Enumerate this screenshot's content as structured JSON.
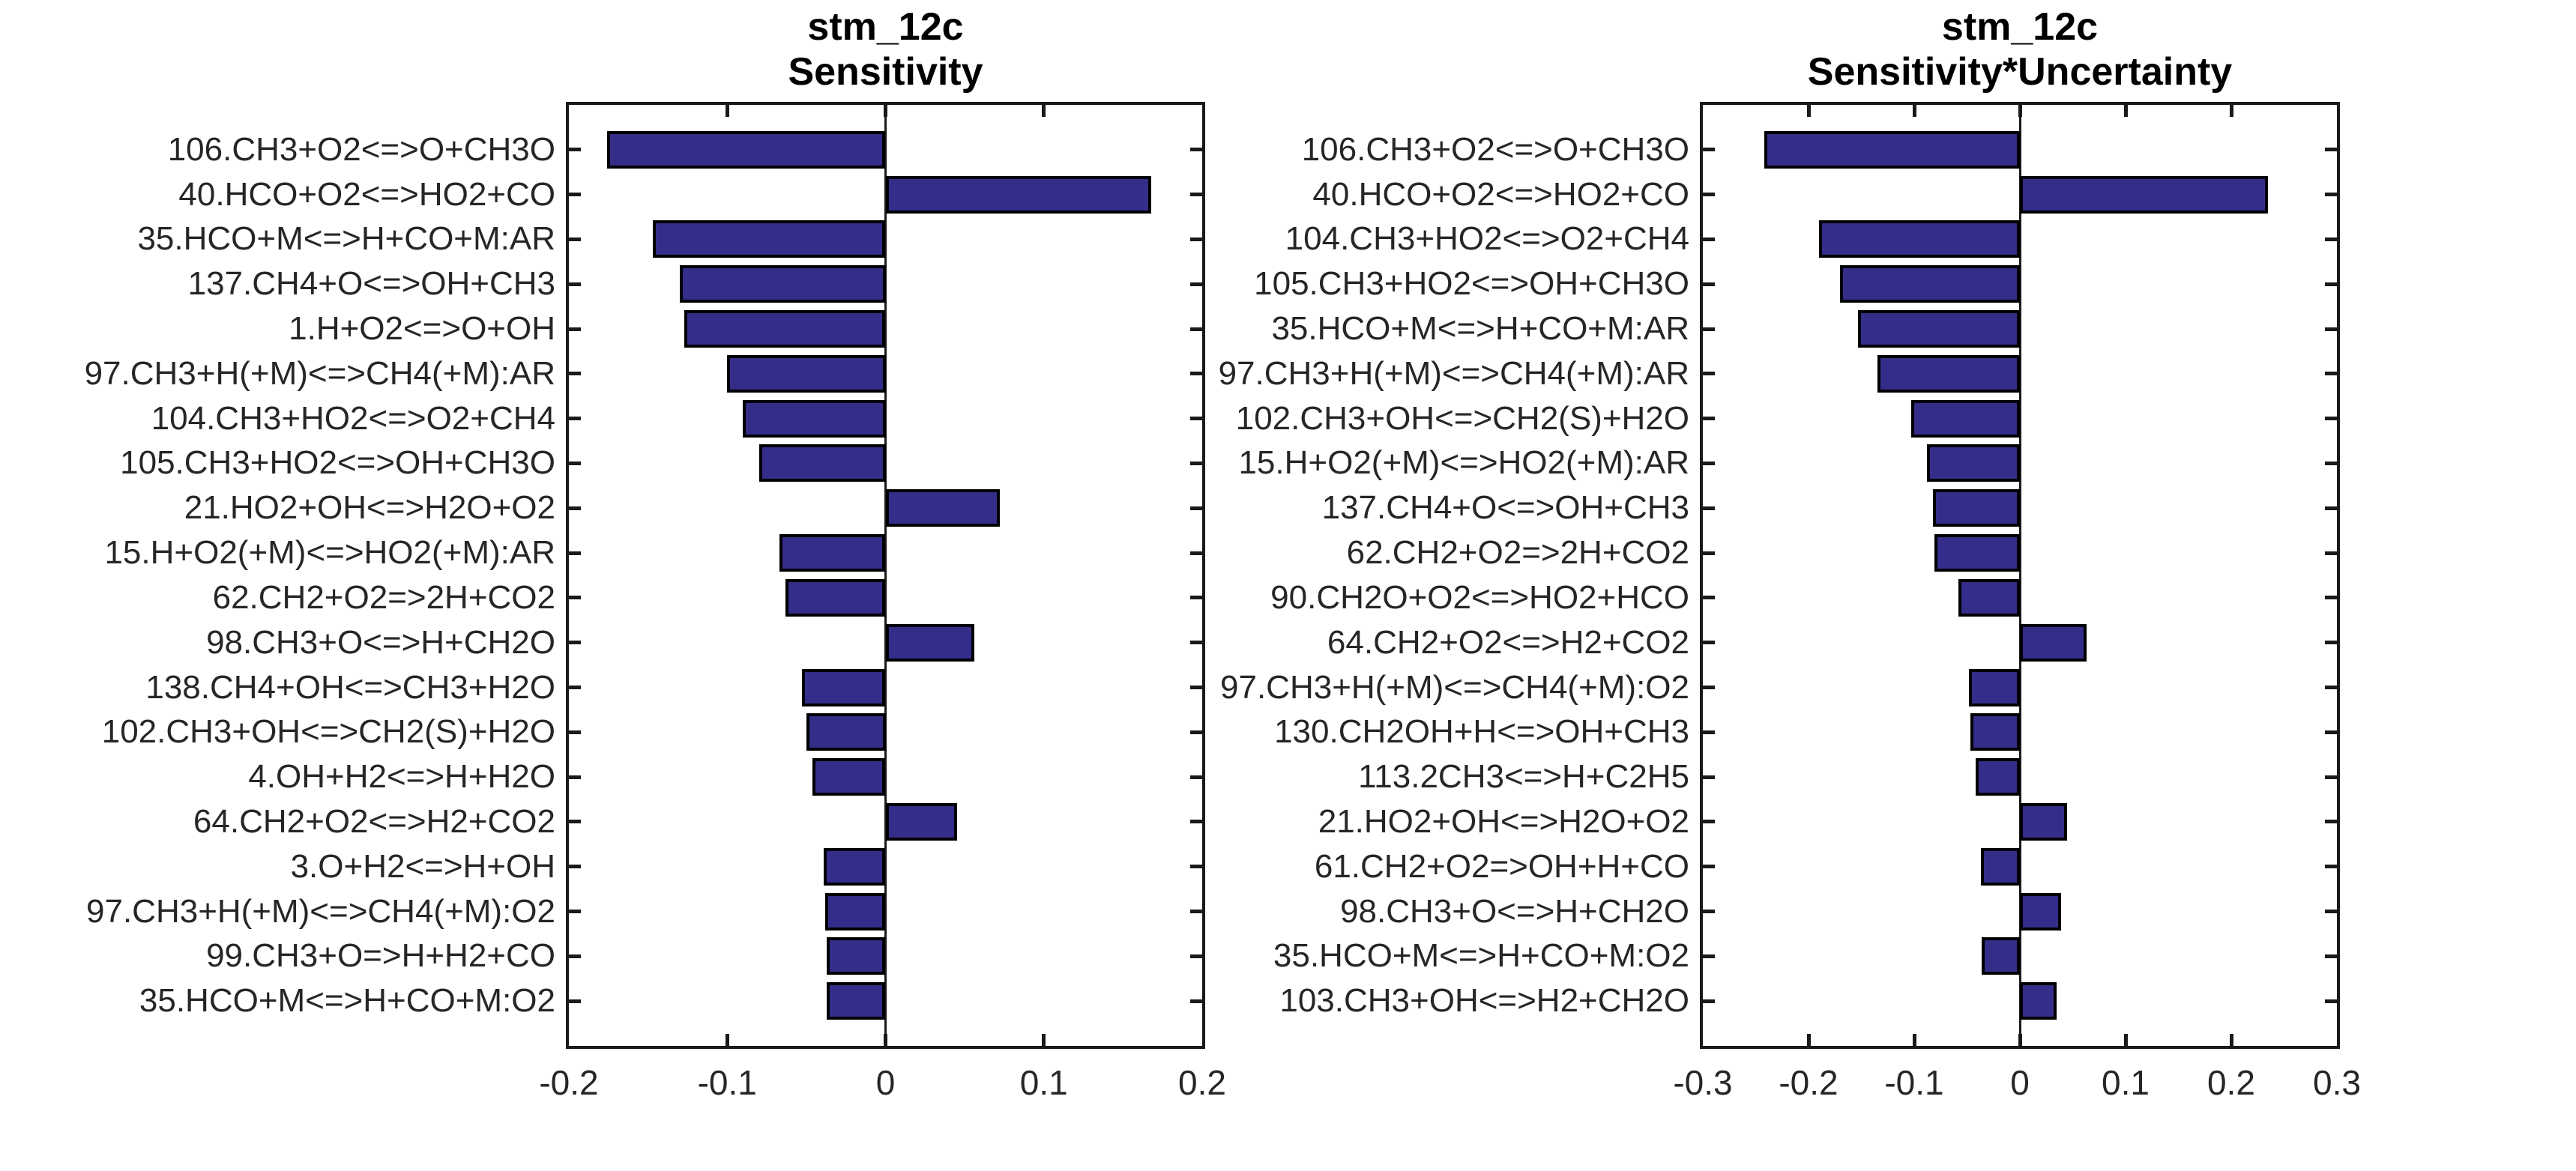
{
  "figure": {
    "background": "#ffffff",
    "axes_color": "#1a1a1a",
    "label_color": "#262626"
  },
  "chart_data": [
    {
      "type": "bar",
      "orientation": "horizontal",
      "title_line1": "stm_12c",
      "title_line2": "Sensitivity",
      "xlabel": "",
      "ylabel": "",
      "grid": false,
      "legend": null,
      "bar_color": "#342d8a",
      "bar_edge_color": "#000000",
      "xlim": [
        -0.2,
        0.2
      ],
      "xticks": [
        -0.2,
        -0.1,
        0,
        0.1,
        0.2
      ],
      "xtick_labels": [
        "-0.2",
        "-0.1",
        "0",
        "0.1",
        "0.2"
      ],
      "categories": [
        "106.CH3+O2<=>O+CH3O",
        "40.HCO+O2<=>HO2+CO",
        "35.HCO+M<=>H+CO+M:AR",
        "137.CH4+O<=>OH+CH3",
        "1.H+O2<=>O+OH",
        "97.CH3+H(+M)<=>CH4(+M):AR",
        "104.CH3+HO2<=>O2+CH4",
        "105.CH3+HO2<=>OH+CH3O",
        "21.HO2+OH<=>H2O+O2",
        "15.H+O2(+M)<=>HO2(+M):AR",
        "62.CH2+O2=>2H+CO2",
        "98.CH3+O<=>H+CH2O",
        "138.CH4+OH<=>CH3+H2O",
        "102.CH3+OH<=>CH2(S)+H2O",
        "4.OH+H2<=>H+H2O",
        "64.CH2+O2<=>H2+CO2",
        "3.O+H2<=>H+OH",
        "97.CH3+H(+M)<=>CH4(+M):O2",
        "99.CH3+O=>H+H2+CO",
        "35.HCO+M<=>H+CO+M:O2"
      ],
      "values": [
        -0.176,
        0.168,
        -0.147,
        -0.13,
        -0.127,
        -0.1,
        -0.09,
        -0.08,
        0.072,
        -0.067,
        -0.063,
        0.056,
        -0.053,
        -0.05,
        -0.046,
        0.045,
        -0.039,
        -0.038,
        -0.037,
        -0.037
      ]
    },
    {
      "type": "bar",
      "orientation": "horizontal",
      "title_line1": "stm_12c",
      "title_line2": "Sensitivity*Uncertainty",
      "xlabel": "",
      "ylabel": "",
      "grid": false,
      "legend": null,
      "bar_color": "#342d8a",
      "bar_edge_color": "#000000",
      "xlim": [
        -0.3,
        0.3
      ],
      "xticks": [
        -0.3,
        -0.2,
        -0.1,
        0,
        0.1,
        0.2,
        0.3
      ],
      "xtick_labels": [
        "-0.3",
        "-0.2",
        "-0.1",
        "0",
        "0.1",
        "0.2",
        "0.3"
      ],
      "categories": [
        "106.CH3+O2<=>O+CH3O",
        "40.HCO+O2<=>HO2+CO",
        "104.CH3+HO2<=>O2+CH4",
        "105.CH3+HO2<=>OH+CH3O",
        "35.HCO+M<=>H+CO+M:AR",
        "97.CH3+H(+M)<=>CH4(+M):AR",
        "102.CH3+OH<=>CH2(S)+H2O",
        "15.H+O2(+M)<=>HO2(+M):AR",
        "137.CH4+O<=>OH+CH3",
        "62.CH2+O2=>2H+CO2",
        "90.CH2O+O2<=>HO2+HCO",
        "64.CH2+O2<=>H2+CO2",
        "97.CH3+H(+M)<=>CH4(+M):O2",
        "130.CH2OH+H<=>OH+CH3",
        "113.2CH3<=>H+C2H5",
        "21.HO2+OH<=>H2O+O2",
        "61.CH2+O2=>OH+H+CO",
        "98.CH3+O<=>H+CH2O",
        "35.HCO+M<=>H+CO+M:O2",
        "103.CH3+OH<=>H2+CH2O"
      ],
      "values": [
        -0.242,
        0.235,
        -0.19,
        -0.17,
        -0.153,
        -0.135,
        -0.103,
        -0.088,
        -0.082,
        -0.081,
        -0.058,
        0.063,
        -0.048,
        -0.047,
        -0.042,
        0.045,
        -0.037,
        0.039,
        -0.036,
        0.035
      ]
    }
  ]
}
